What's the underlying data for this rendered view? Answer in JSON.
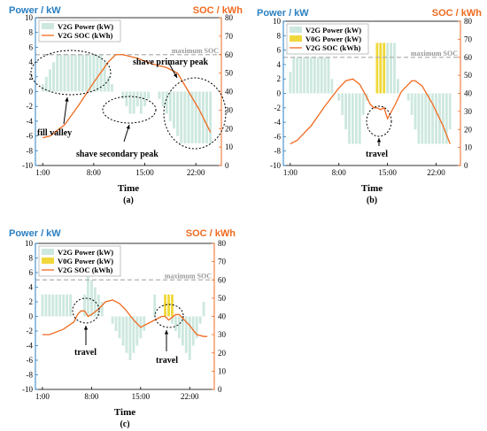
{
  "colors": {
    "v2g_bar": "#cde8df",
    "v0g_bar": "#f0d83a",
    "soc_line": "#f06a1f",
    "left_axis": "#2a7fc1",
    "right_axis": "#f06a1f",
    "max_soc_line": "#b0b0b0"
  },
  "chart_data": [
    {
      "panel": "(a)",
      "type": "bar+line",
      "ylabel_left": "Power / kW",
      "ylabel_right": "SOC / kWh",
      "xlabel": "Time",
      "xticks": [
        "1:00",
        "8:00",
        "15:00",
        "22:00"
      ],
      "ylim_left": [
        -10,
        10
      ],
      "ylim_right": [
        0,
        80
      ],
      "yticks_left": [
        "-10",
        "-8",
        "-6",
        "-4",
        "-2",
        "0",
        "2",
        "4",
        "6",
        "8",
        "10"
      ],
      "yticks_right": [
        "0",
        "10",
        "20",
        "30",
        "40",
        "50",
        "60",
        "70",
        "80"
      ],
      "legend": {
        "placement": "top-left",
        "entries": [
          "V2G Power (kW)",
          "V2G SOC (kWh)"
        ]
      },
      "max_soc": {
        "label": "maximum SOC",
        "value": 60
      },
      "annotations": [
        {
          "text": "fill valley"
        },
        {
          "text": "shave secondary peak"
        },
        {
          "text": "shave primary  peak"
        }
      ],
      "series": [
        {
          "name": "V2G Power (kW)",
          "kind": "bar",
          "color_key": "v2g_bar",
          "x_hours": [
            1,
            1.5,
            2,
            2.5,
            3,
            3.5,
            4,
            4.5,
            5,
            5.5,
            6,
            6.5,
            7,
            7.5,
            8,
            8.5,
            9,
            9.5,
            10,
            10.5,
            11,
            11.5,
            12,
            12.5,
            13,
            13.5,
            14,
            14.5,
            15,
            15.5,
            16,
            16.5,
            17,
            17.5,
            18,
            18.5,
            19,
            19.5,
            20,
            20.5,
            21,
            21.5,
            22,
            22.5,
            23,
            23.5,
            24
          ],
          "values": [
            1,
            2,
            3,
            4,
            5,
            5,
            5,
            5,
            5,
            5,
            5,
            5,
            5,
            5,
            5,
            5,
            5,
            4,
            2,
            1,
            0,
            0,
            -1,
            -2,
            -3,
            -3,
            -2,
            -3,
            -2,
            -1,
            0,
            0,
            -1,
            -2,
            -3,
            -4,
            -5,
            -6,
            -7,
            -7,
            -7,
            -7,
            -7,
            -7,
            -7,
            -7,
            -7
          ]
        },
        {
          "name": "V2G SOC (kWh)",
          "kind": "line",
          "color_key": "soc_line",
          "points": [
            [
              1,
              15
            ],
            [
              2,
              16
            ],
            [
              4,
              22
            ],
            [
              6,
              33
            ],
            [
              8,
              45
            ],
            [
              10,
              56
            ],
            [
              11,
              60
            ],
            [
              12,
              60
            ],
            [
              14,
              58
            ],
            [
              16,
              55
            ],
            [
              18,
              53
            ],
            [
              19.5,
              50
            ],
            [
              21,
              40
            ],
            [
              22.5,
              30
            ],
            [
              24,
              18
            ]
          ]
        }
      ]
    },
    {
      "panel": "(b)",
      "type": "bar+line",
      "ylabel_left": "Power / kW",
      "ylabel_right": "SOC / kWh",
      "xlabel": "Time",
      "xticks": [
        "1:00",
        "8:00",
        "15:00",
        "22:00"
      ],
      "ylim_left": [
        -10,
        10
      ],
      "ylim_right": [
        0,
        80
      ],
      "yticks_left": [
        "-10",
        "-8",
        "-6",
        "-4",
        "-2",
        "0",
        "2",
        "4",
        "6",
        "8",
        "10"
      ],
      "yticks_right": [
        "0",
        "10",
        "20",
        "30",
        "40",
        "50",
        "60",
        "70",
        "80"
      ],
      "legend": {
        "placement": "top-left",
        "entries": [
          "V2G Power (kW)",
          "V0G Power (kW)",
          "V2G SOC (kWh)"
        ]
      },
      "max_soc": {
        "label": "maximum SOC",
        "value": 60
      },
      "annotations": [
        {
          "text": "travel"
        }
      ],
      "series": [
        {
          "name": "V2G Power (kW)",
          "kind": "bar",
          "color_key": "v2g_bar",
          "x_hours": [
            1,
            1.5,
            2,
            2.5,
            3,
            3.5,
            4,
            4.5,
            5,
            5.5,
            6,
            6.5,
            7,
            7.5,
            8,
            8.5,
            9,
            9.5,
            10,
            10.5,
            11,
            11.5,
            12,
            15,
            15.5,
            16,
            16.5,
            17,
            17.5,
            18,
            18.5,
            19,
            19.5,
            20,
            20.5,
            21,
            21.5,
            22,
            22.5,
            23,
            23.5,
            24
          ],
          "values": [
            3,
            5,
            5,
            5,
            5,
            5,
            5,
            5,
            5,
            5,
            5,
            5,
            2,
            0,
            -1,
            -3,
            -5,
            -7,
            -7,
            -7,
            -7,
            -3,
            -1,
            7,
            7,
            7,
            2,
            0,
            0,
            -1,
            -3,
            -5,
            -7,
            -7,
            -7,
            -7,
            -7,
            -7,
            -7,
            -7,
            -7,
            -5
          ]
        },
        {
          "name": "V0G Power (kW)",
          "kind": "bar",
          "color_key": "v0g_bar",
          "x_hours": [
            13.5,
            14,
            14.5
          ],
          "values": [
            7,
            7,
            7
          ]
        },
        {
          "name": "V2G SOC (kWh)",
          "kind": "line",
          "color_key": "soc_line",
          "points": [
            [
              1,
              12
            ],
            [
              2,
              14
            ],
            [
              4,
              22
            ],
            [
              6,
              33
            ],
            [
              8,
              43
            ],
            [
              9,
              47
            ],
            [
              10,
              48
            ],
            [
              11,
              45
            ],
            [
              12,
              38
            ],
            [
              12.5,
              34
            ],
            [
              13,
              32
            ],
            [
              13.5,
              32
            ],
            [
              14,
              31
            ],
            [
              14.5,
              32
            ],
            [
              15,
              26
            ],
            [
              16,
              33
            ],
            [
              17,
              41
            ],
            [
              18.5,
              47
            ],
            [
              19,
              47
            ],
            [
              20,
              44
            ],
            [
              21.5,
              34
            ],
            [
              23,
              22
            ],
            [
              24,
              12
            ]
          ]
        }
      ]
    },
    {
      "panel": "(c)",
      "type": "bar+line",
      "ylabel_left": "Power / kW",
      "ylabel_right": "SOC / kWh",
      "xlabel": "Time",
      "xticks": [
        "1:00",
        "8:00",
        "15:00",
        "22:00"
      ],
      "ylim_left": [
        -10,
        10
      ],
      "ylim_right": [
        0,
        80
      ],
      "yticks_left": [
        "-10",
        "-8",
        "-6",
        "-4",
        "-2",
        "0",
        "2",
        "4",
        "6",
        "8",
        "10"
      ],
      "yticks_right": [
        "0",
        "10",
        "20",
        "30",
        "40",
        "50",
        "60",
        "70",
        "80"
      ],
      "legend": {
        "placement": "top-left",
        "entries": [
          "V2G Power (kW)",
          "V0G Power (kW)",
          "V2G SOC (kWh)"
        ]
      },
      "max_soc": {
        "label": "maximum SOC",
        "value": 60
      },
      "annotations": [
        {
          "text": "travel"
        },
        {
          "text": "travel"
        }
      ],
      "series": [
        {
          "name": "V2G Power (kW)",
          "kind": "bar",
          "color_key": "v2g_bar",
          "x_hours": [
            1,
            1.5,
            2,
            2.5,
            3,
            3.5,
            4,
            4.5,
            5,
            7,
            7.5,
            8,
            8.5,
            9,
            9.5,
            10,
            10.5,
            11,
            11.5,
            12,
            12.5,
            13,
            13.5,
            14,
            14.5,
            15,
            15.5,
            16,
            16.5,
            17,
            19.5,
            20,
            20.5,
            21,
            21.5,
            22,
            22.5,
            23,
            23.5,
            24
          ],
          "values": [
            3,
            3,
            3,
            3,
            3,
            3,
            3,
            3,
            3,
            3,
            6,
            5,
            4,
            3,
            2,
            0,
            0,
            -1,
            -2,
            -3,
            -4,
            -5,
            -6,
            -5,
            -4,
            -3,
            -2,
            0,
            0,
            3,
            -1,
            -2,
            -3,
            -4,
            -5,
            -6,
            -4,
            -3,
            -1,
            2
          ]
        },
        {
          "name": "V0G Power (kW)",
          "kind": "bar",
          "color_key": "v0g_bar",
          "x_hours": [
            18.5,
            19,
            19.5
          ],
          "values": [
            3,
            3,
            3
          ]
        },
        {
          "name": "V2G SOC (kWh)",
          "kind": "line",
          "color_key": "soc_line",
          "points": [
            [
              1,
              30
            ],
            [
              2,
              30
            ],
            [
              4,
              33
            ],
            [
              5.5,
              37
            ],
            [
              6,
              41
            ],
            [
              6.5,
              43
            ],
            [
              7,
              43
            ],
            [
              7.5,
              40
            ],
            [
              8,
              41
            ],
            [
              9,
              44
            ],
            [
              10,
              48
            ],
            [
              11,
              49
            ],
            [
              12,
              47
            ],
            [
              13,
              43
            ],
            [
              14,
              38
            ],
            [
              15,
              34
            ],
            [
              16,
              36
            ],
            [
              17,
              38
            ],
            [
              18,
              40
            ],
            [
              18.5,
              40
            ],
            [
              19,
              38
            ],
            [
              20,
              41
            ],
            [
              20.5,
              41
            ],
            [
              21,
              39
            ],
            [
              22,
              35
            ],
            [
              23,
              30
            ],
            [
              24,
              29
            ],
            [
              24.5,
              29
            ]
          ]
        }
      ]
    }
  ]
}
